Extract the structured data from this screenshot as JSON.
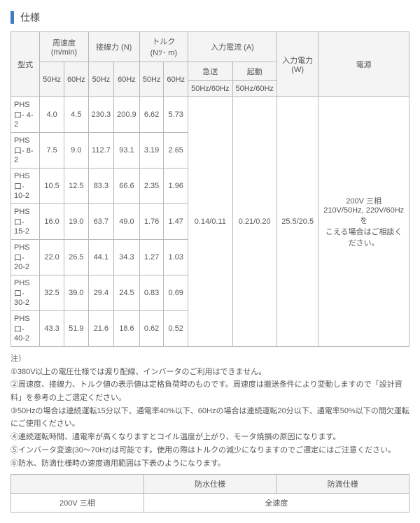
{
  "title": "仕様",
  "headers": {
    "model": "型式",
    "speed": "周速度",
    "speed_unit": "(m/min)",
    "force": "接線力 (N)",
    "torque": "トルク",
    "torque_unit": "(Nﾂ･ m)",
    "current": "入力電流 (A)",
    "power": "入力電力 (W)",
    "source": "電源",
    "hz50": "50Hz",
    "hz60": "60Hz",
    "kyuso": "急送",
    "kido": "起動",
    "hz5060": "50Hz/60Hz"
  },
  "rows": [
    {
      "model": "PHS口- 4-2",
      "s50": "4.0",
      "s60": "4.5",
      "f50": "230.3",
      "f60": "200.9",
      "t50": "6.62",
      "t60": "5.73"
    },
    {
      "model": "PHS口- 8-2",
      "s50": "7.5",
      "s60": "9.0",
      "f50": "112.7",
      "f60": "93.1",
      "t50": "3.19",
      "t60": "2.65"
    },
    {
      "model": "PHS口- 10-2",
      "s50": "10.5",
      "s60": "12.5",
      "f50": "83.3",
      "f60": "66.6",
      "t50": "2.35",
      "t60": "1.96"
    },
    {
      "model": "PHS口- 15-2",
      "s50": "16.0",
      "s60": "19.0",
      "f50": "63.7",
      "f60": "49.0",
      "t50": "1.76",
      "t60": "1.47"
    },
    {
      "model": "PHS口- 20-2",
      "s50": "22.0",
      "s60": "26.5",
      "f50": "44.1",
      "f60": "34.3",
      "t50": "1.27",
      "t60": "1.03"
    },
    {
      "model": "PHS口- 30-2",
      "s50": "32.5",
      "s60": "39.0",
      "f50": "29.4",
      "f60": "24.5",
      "t50": "0.83",
      "t60": "0.69"
    },
    {
      "model": "PHS口- 40-2",
      "s50": "43.3",
      "s60": "51.9",
      "f50": "21.6",
      "f60": "18.6",
      "t50": "0.62",
      "t60": "0.52"
    }
  ],
  "merged": {
    "kyuso": "0.14/0.11",
    "kido": "0.21/0.20",
    "power": "25.5/20.5",
    "source": "200V 三相\n210V/50Hz, 220V/60Hzを\nこえる場合はご相談ください。"
  },
  "notes": [
    "注）",
    "①380V以上の電圧仕様では渡り配線、インバータのご利用はできません。",
    "②周速度、接線力、トルク値の表示値は定格負荷時のものです。周速度は搬送条件により変動しますので「設計資料」を参考の上ご選定ください。",
    "③50Hzの場合は連続運転15分以下、通電率40%以下、60Hzの場合は連続運転20分以下、通電率50%以下の間欠運転にご使用ください。",
    "④連続運転時間、通電率が高くなりますとコイル温度が上がり、モータ焼損の原因になります。",
    "⑤インバータ変速(30～70Hz)は可能です。使用の際はトルクの減少になりますのでご選定にはご注意ください。",
    "⑥防水、防滴仕様時の速度適用範囲は下表のようになります。"
  ],
  "subtable": {
    "col1_blank": "",
    "col2": "防水仕様",
    "col3": "防滴仕様",
    "row1c1": "200V 三相",
    "row1c23": "全速度"
  }
}
